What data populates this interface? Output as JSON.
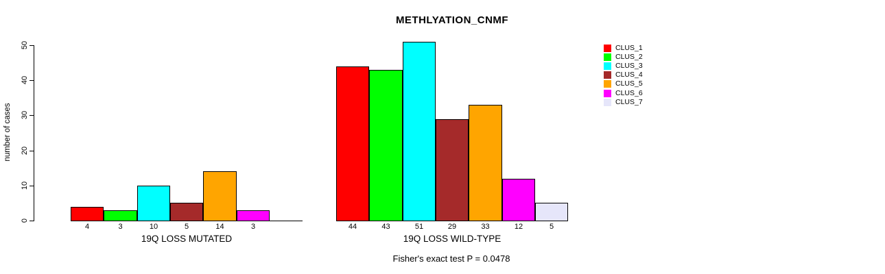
{
  "title": "METHLYATION_CNMF",
  "chart_data": {
    "type": "bar",
    "title": "METHLYATION_CNMF",
    "ylabel": "number of cases",
    "ylim": [
      0,
      50
    ],
    "y_ticks": [
      0,
      10,
      20,
      30,
      40,
      50
    ],
    "grid": false,
    "legend_position": "right",
    "legend": [
      "CLUS_1",
      "CLUS_2",
      "CLUS_3",
      "CLUS_4",
      "CLUS_5",
      "CLUS_6",
      "CLUS_7"
    ],
    "colors": [
      "#FF0000",
      "#00FF00",
      "#00FFFF",
      "#A52A2A",
      "#FFA500",
      "#FF00FF",
      "#E6E6FA"
    ],
    "groups": [
      {
        "label": "19Q LOSS MUTATED",
        "values": [
          4,
          3,
          10,
          5,
          14,
          3,
          0
        ],
        "bar_labels": [
          "4",
          "3",
          "10",
          "5",
          "14",
          "3",
          ""
        ]
      },
      {
        "label": "19Q LOSS WILD-TYPE",
        "values": [
          44,
          43,
          51,
          29,
          33,
          12,
          5
        ],
        "bar_labels": [
          "44",
          "43",
          "51",
          "29",
          "33",
          "12",
          "5"
        ]
      }
    ],
    "annotation": "Fisher's exact test P = 0.0478"
  }
}
